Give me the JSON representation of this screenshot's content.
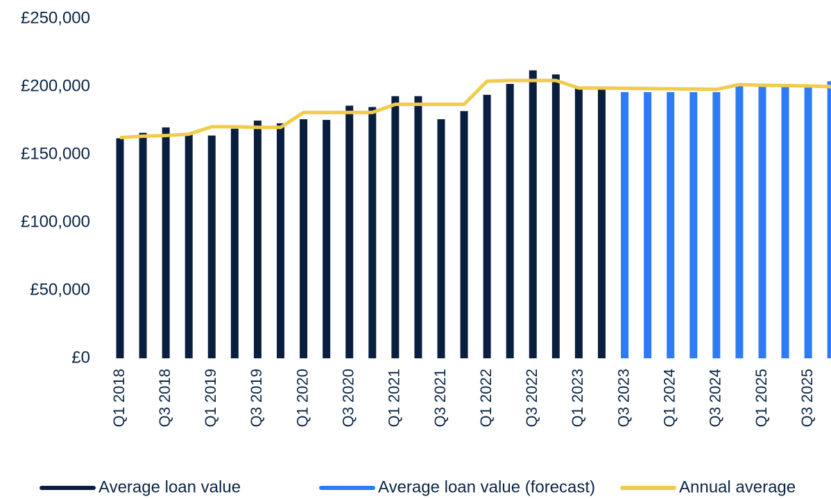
{
  "chart_data": {
    "type": "bar",
    "categories": [
      "Q1 2018",
      null,
      "Q3 2018",
      null,
      "Q1 2019",
      null,
      "Q3 2019",
      null,
      "Q1 2020",
      null,
      "Q3 2020",
      null,
      "Q1 2021",
      null,
      "Q3 2021",
      null,
      "Q1 2022",
      null,
      "Q3 2022",
      null,
      "Q1 2023",
      null,
      "Q3 2023",
      null,
      "Q1 2024",
      null,
      "Q3 2024",
      null,
      "Q1 2025",
      null,
      "Q3 2025",
      null
    ],
    "series": [
      {
        "name": "Average loan value",
        "color": "#0a1f3f",
        "type": "bar",
        "values": [
          162000,
          166000,
          170000,
          165000,
          164000,
          169000,
          175000,
          173000,
          176000,
          175500,
          186000,
          185000,
          193000,
          193000,
          176000,
          182000,
          194000,
          202000,
          212000,
          209000,
          199000,
          199000,
          null,
          null,
          null,
          null,
          null,
          null,
          null,
          null,
          null,
          null
        ]
      },
      {
        "name": "Average loan value (forecast)",
        "color": "#2f7bf5",
        "type": "bar",
        "values": [
          null,
          null,
          null,
          null,
          null,
          null,
          null,
          null,
          null,
          null,
          null,
          null,
          null,
          null,
          null,
          null,
          null,
          null,
          null,
          null,
          null,
          null,
          196000,
          196000,
          196000,
          196000,
          196000,
          201500,
          201000,
          201000,
          200000,
          204000
        ]
      },
      {
        "name": "Annual average",
        "color": "#f0cc4a",
        "type": "line",
        "values": [
          162500,
          163500,
          164000,
          165000,
          170500,
          170500,
          170000,
          170000,
          181000,
          181000,
          181000,
          181000,
          187000,
          187000,
          187000,
          187000,
          204000,
          204500,
          204500,
          204500,
          199000,
          199000,
          198800,
          198600,
          198400,
          198200,
          198000,
          201500,
          201000,
          200800,
          200500,
          200000
        ]
      }
    ],
    "ylim": [
      0,
      250000
    ],
    "yticks": [
      {
        "value": 0,
        "label": "£0"
      },
      {
        "value": 50000,
        "label": "£50,000"
      },
      {
        "value": 100000,
        "label": "£100,000"
      },
      {
        "value": 150000,
        "label": "£150,000"
      },
      {
        "value": 200000,
        "label": "£200,000"
      },
      {
        "value": 250000,
        "label": "£250,000"
      }
    ],
    "grid": false,
    "legend": "bottom"
  }
}
